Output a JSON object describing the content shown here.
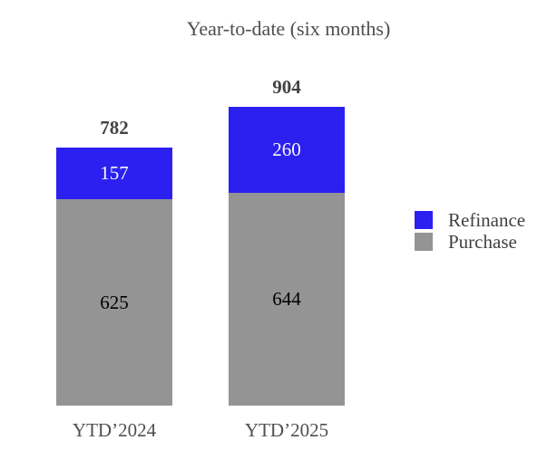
{
  "chart_data": {
    "type": "bar",
    "stacked": true,
    "title": "Year-to-date (six months)",
    "categories": [
      "YTD’2024",
      "YTD’2025"
    ],
    "series": [
      {
        "name": "Purchase",
        "color": "#949494",
        "label_color": "#000000",
        "values": [
          625,
          644
        ]
      },
      {
        "name": "Refinance",
        "color": "#2B20F0",
        "label_color": "#F7F7F7",
        "values": [
          157,
          260
        ]
      }
    ],
    "totals": [
      782,
      904
    ],
    "legend": {
      "position": "right",
      "entries": [
        {
          "label": "Refinance",
          "color": "#2B20F0"
        },
        {
          "label": "Purchase",
          "color": "#949494"
        }
      ]
    },
    "grid": false,
    "axes_visible": false,
    "ylim": [
      0,
      1000
    ]
  }
}
